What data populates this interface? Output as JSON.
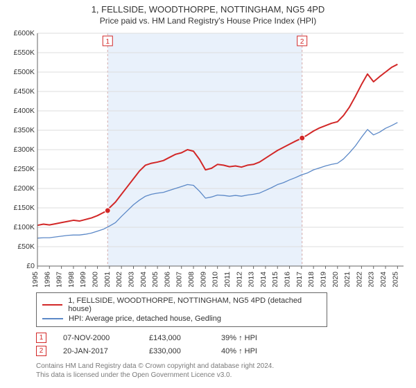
{
  "titles": {
    "line1": "1, FELLSIDE, WOODTHORPE, NOTTINGHAM, NG5 4PD",
    "line2": "Price paid vs. HM Land Registry's House Price Index (HPI)"
  },
  "chart": {
    "type": "line",
    "background_color": "#ffffff",
    "grid_color": "#dddddd",
    "interval_fill": "#e9f1fb",
    "interval_border": "#d4aaaa",
    "marker_border": "#d22727",
    "marker_fill": "#d22727",
    "marker_size": 4,
    "x": {
      "min": 1995,
      "max": 2025.5,
      "ticks": [
        1995,
        1996,
        1997,
        1998,
        1999,
        2000,
        2001,
        2002,
        2003,
        2004,
        2005,
        2006,
        2007,
        2008,
        2009,
        2010,
        2011,
        2012,
        2013,
        2014,
        2015,
        2016,
        2017,
        2018,
        2019,
        2020,
        2021,
        2022,
        2023,
        2024,
        2025
      ]
    },
    "y": {
      "min": 0,
      "max": 600000,
      "tick_step": 50000,
      "tick_labels": [
        "£0",
        "£50K",
        "£100K",
        "£150K",
        "£200K",
        "£250K",
        "£300K",
        "£350K",
        "£400K",
        "£450K",
        "£500K",
        "£550K",
        "£600K"
      ]
    },
    "interval_x": [
      2000.85,
      2017.05
    ],
    "series": [
      {
        "id": "price_paid",
        "label": "1, FELLSIDE, WOODTHORPE, NOTTINGHAM, NG5 4PD (detached house)",
        "color": "#d22727",
        "width": 2,
        "data": [
          [
            1995.0,
            105000
          ],
          [
            1995.5,
            108000
          ],
          [
            1996.0,
            106000
          ],
          [
            1996.5,
            109000
          ],
          [
            1997.0,
            112000
          ],
          [
            1997.5,
            115000
          ],
          [
            1998.0,
            118000
          ],
          [
            1998.5,
            116000
          ],
          [
            1999.0,
            120000
          ],
          [
            1999.5,
            124000
          ],
          [
            2000.0,
            130000
          ],
          [
            2000.5,
            138000
          ],
          [
            2000.85,
            143000
          ],
          [
            2001.0,
            150000
          ],
          [
            2001.5,
            165000
          ],
          [
            2002.0,
            185000
          ],
          [
            2002.5,
            205000
          ],
          [
            2003.0,
            225000
          ],
          [
            2003.5,
            245000
          ],
          [
            2004.0,
            260000
          ],
          [
            2004.5,
            265000
          ],
          [
            2005.0,
            268000
          ],
          [
            2005.5,
            272000
          ],
          [
            2006.0,
            280000
          ],
          [
            2006.5,
            288000
          ],
          [
            2007.0,
            292000
          ],
          [
            2007.5,
            300000
          ],
          [
            2008.0,
            296000
          ],
          [
            2008.5,
            275000
          ],
          [
            2009.0,
            248000
          ],
          [
            2009.5,
            252000
          ],
          [
            2010.0,
            262000
          ],
          [
            2010.5,
            260000
          ],
          [
            2011.0,
            256000
          ],
          [
            2011.5,
            258000
          ],
          [
            2012.0,
            255000
          ],
          [
            2012.5,
            260000
          ],
          [
            2013.0,
            262000
          ],
          [
            2013.5,
            268000
          ],
          [
            2014.0,
            278000
          ],
          [
            2014.5,
            288000
          ],
          [
            2015.0,
            298000
          ],
          [
            2015.5,
            306000
          ],
          [
            2016.0,
            314000
          ],
          [
            2016.5,
            322000
          ],
          [
            2017.05,
            330000
          ],
          [
            2017.5,
            338000
          ],
          [
            2018.0,
            348000
          ],
          [
            2018.5,
            356000
          ],
          [
            2019.0,
            362000
          ],
          [
            2019.5,
            368000
          ],
          [
            2020.0,
            372000
          ],
          [
            2020.5,
            388000
          ],
          [
            2021.0,
            410000
          ],
          [
            2021.5,
            438000
          ],
          [
            2022.0,
            468000
          ],
          [
            2022.5,
            495000
          ],
          [
            2023.0,
            475000
          ],
          [
            2023.5,
            488000
          ],
          [
            2024.0,
            500000
          ],
          [
            2024.5,
            512000
          ],
          [
            2025.0,
            520000
          ]
        ]
      },
      {
        "id": "hpi",
        "label": "HPI: Average price, detached house, Gedling",
        "color": "#5b88c7",
        "width": 1.3,
        "data": [
          [
            1995.0,
            72000
          ],
          [
            1995.5,
            73000
          ],
          [
            1996.0,
            73000
          ],
          [
            1996.5,
            75000
          ],
          [
            1997.0,
            77000
          ],
          [
            1997.5,
            79000
          ],
          [
            1998.0,
            80000
          ],
          [
            1998.5,
            80000
          ],
          [
            1999.0,
            82000
          ],
          [
            1999.5,
            85000
          ],
          [
            2000.0,
            90000
          ],
          [
            2000.5,
            95000
          ],
          [
            2001.0,
            103000
          ],
          [
            2001.5,
            112000
          ],
          [
            2002.0,
            128000
          ],
          [
            2002.5,
            143000
          ],
          [
            2003.0,
            158000
          ],
          [
            2003.5,
            170000
          ],
          [
            2004.0,
            180000
          ],
          [
            2004.5,
            185000
          ],
          [
            2005.0,
            188000
          ],
          [
            2005.5,
            190000
          ],
          [
            2006.0,
            195000
          ],
          [
            2006.5,
            200000
          ],
          [
            2007.0,
            205000
          ],
          [
            2007.5,
            210000
          ],
          [
            2008.0,
            208000
          ],
          [
            2008.5,
            193000
          ],
          [
            2009.0,
            175000
          ],
          [
            2009.5,
            178000
          ],
          [
            2010.0,
            183000
          ],
          [
            2010.5,
            182000
          ],
          [
            2011.0,
            180000
          ],
          [
            2011.5,
            182000
          ],
          [
            2012.0,
            180000
          ],
          [
            2012.5,
            183000
          ],
          [
            2013.0,
            185000
          ],
          [
            2013.5,
            188000
          ],
          [
            2014.0,
            195000
          ],
          [
            2014.5,
            202000
          ],
          [
            2015.0,
            210000
          ],
          [
            2015.5,
            215000
          ],
          [
            2016.0,
            222000
          ],
          [
            2016.5,
            228000
          ],
          [
            2017.0,
            235000
          ],
          [
            2017.5,
            240000
          ],
          [
            2018.0,
            248000
          ],
          [
            2018.5,
            253000
          ],
          [
            2019.0,
            258000
          ],
          [
            2019.5,
            262000
          ],
          [
            2020.0,
            265000
          ],
          [
            2020.5,
            276000
          ],
          [
            2021.0,
            292000
          ],
          [
            2021.5,
            310000
          ],
          [
            2022.0,
            332000
          ],
          [
            2022.5,
            352000
          ],
          [
            2023.0,
            338000
          ],
          [
            2023.5,
            345000
          ],
          [
            2024.0,
            355000
          ],
          [
            2024.5,
            362000
          ],
          [
            2025.0,
            370000
          ]
        ]
      }
    ],
    "markers": [
      {
        "n": "1",
        "x": 2000.85,
        "y": 143000
      },
      {
        "n": "2",
        "x": 2017.05,
        "y": 330000
      }
    ]
  },
  "legend": [
    {
      "color": "#d22727",
      "label": "1, FELLSIDE, WOODTHORPE, NOTTINGHAM, NG5 4PD (detached house)"
    },
    {
      "color": "#5b88c7",
      "label": "HPI: Average price, detached house, Gedling"
    }
  ],
  "trades": [
    {
      "n": "1",
      "date": "07-NOV-2000",
      "price": "£143,000",
      "hpi": "39% ↑ HPI"
    },
    {
      "n": "2",
      "date": "20-JAN-2017",
      "price": "£330,000",
      "hpi": "40% ↑ HPI"
    }
  ],
  "footer": {
    "line1": "Contains HM Land Registry data © Crown copyright and database right 2024.",
    "line2": "This data is licensed under the Open Government Licence v3.0."
  }
}
